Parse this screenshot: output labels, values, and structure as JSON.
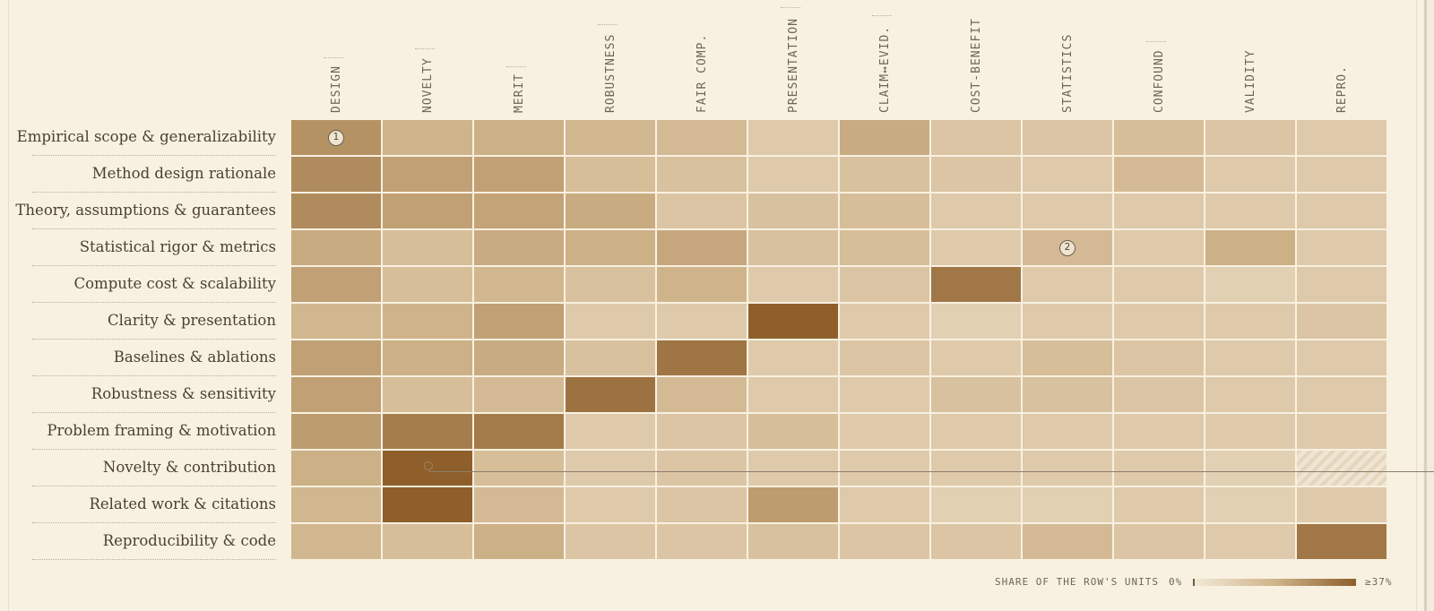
{
  "chart_data": {
    "type": "heatmap",
    "columns": [
      "DESIGN",
      "NOVELTY",
      "MERIT",
      "ROBUSTNESS",
      "FAIR COMP.",
      "PRESENTATION",
      "CLAIM↔EVID.",
      "COST-BENEFIT",
      "STATISTICS",
      "CONFOUND",
      "VALIDITY",
      "REPRO."
    ],
    "rows": [
      "Empirical scope & generalizability",
      "Method design rationale",
      "Theory, assumptions & guarantees",
      "Statistical rigor & metrics",
      "Compute cost & scalability",
      "Clarity & presentation",
      "Baselines & ablations",
      "Robustness & sensitivity",
      "Problem framing & motivation",
      "Novelty & contribution",
      "Related work & citations",
      "Reproducibility & code"
    ],
    "values": [
      [
        18,
        9,
        10,
        8,
        7,
        3,
        11,
        4,
        4,
        6,
        4,
        3
      ],
      [
        20,
        14,
        14,
        6,
        5,
        3,
        5,
        4,
        3,
        7,
        3,
        3
      ],
      [
        20,
        14,
        13,
        11,
        4,
        5,
        6,
        3,
        3,
        3,
        3,
        3
      ],
      [
        11,
        6,
        11,
        10,
        12,
        5,
        6,
        3,
        7,
        3,
        10,
        3
      ],
      [
        14,
        6,
        8,
        5,
        9,
        3,
        4,
        27,
        3,
        3,
        2,
        3
      ],
      [
        8,
        9,
        14,
        3,
        3,
        37,
        3,
        2,
        3,
        3,
        3,
        4
      ],
      [
        14,
        10,
        11,
        5,
        28,
        3,
        4,
        3,
        6,
        4,
        3,
        3
      ],
      [
        14,
        6,
        7,
        29,
        7,
        3,
        3,
        5,
        5,
        4,
        3,
        3
      ],
      [
        15,
        25,
        26,
        3,
        4,
        6,
        3,
        3,
        3,
        3,
        3,
        3
      ],
      [
        10,
        37,
        6,
        3,
        4,
        3,
        3,
        3,
        3,
        3,
        2,
        null
      ],
      [
        8,
        37,
        7,
        3,
        4,
        15,
        3,
        2,
        2,
        3,
        2,
        3
      ],
      [
        8,
        6,
        10,
        4,
        4,
        5,
        4,
        4,
        7,
        4,
        3,
        27
      ]
    ],
    "color_min": "#f2e9d6",
    "color_mid": "#cfb38a",
    "color_max": "#8e5f2b",
    "legend": {
      "label": "SHARE OF THE ROW'S UNITS",
      "min_label": "0%",
      "max_label": "≥37%",
      "placement": "bottom-right"
    },
    "markers": [
      {
        "label": "1",
        "row": 0,
        "col": 0
      },
      {
        "label": "2",
        "row": 3,
        "col": 8
      }
    ],
    "highlight": {
      "row": 9,
      "col": 1
    }
  }
}
